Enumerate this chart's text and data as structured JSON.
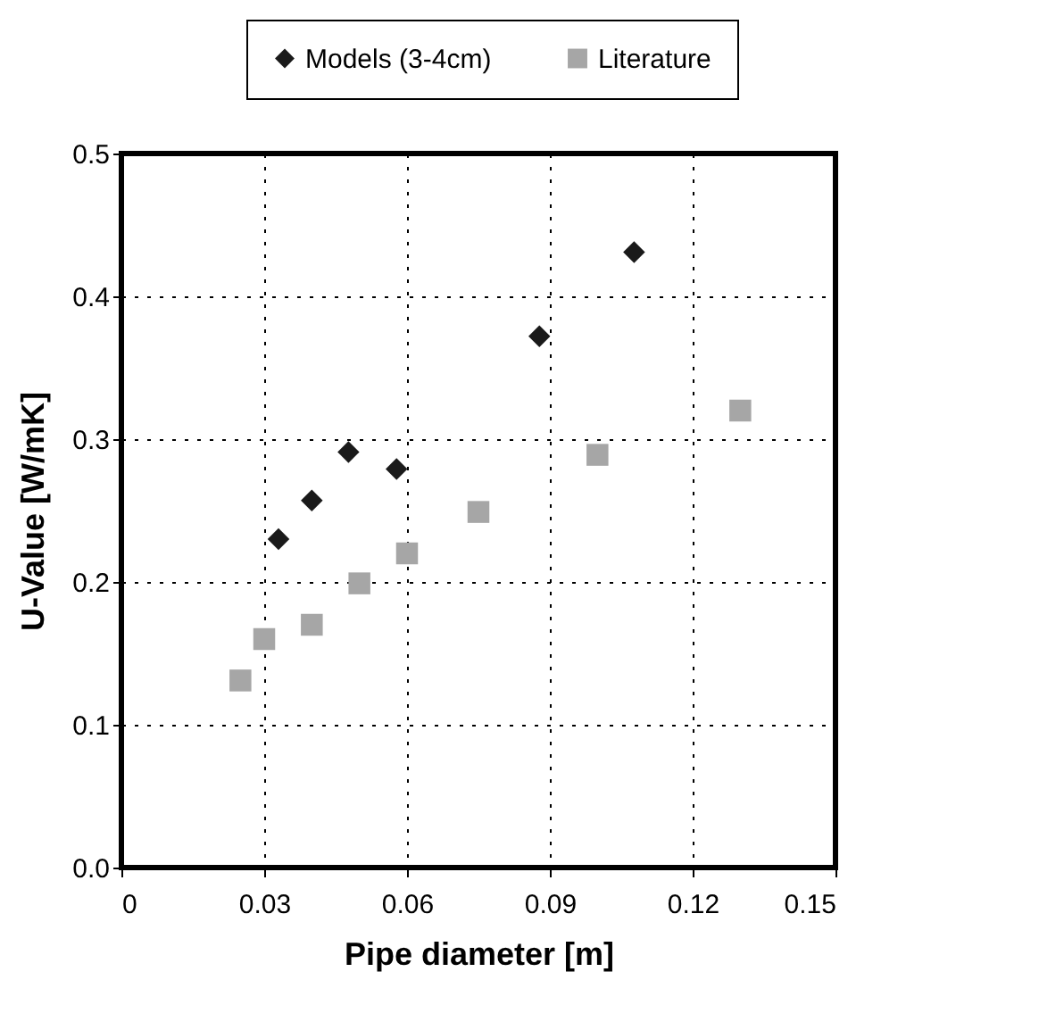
{
  "chart_data": {
    "type": "scatter",
    "xlabel": "Pipe diameter [m]",
    "ylabel": "U-Value [W/mK]",
    "xlim": [
      0,
      0.15
    ],
    "xticks": [
      0,
      0.03,
      0.06,
      0.09,
      0.12,
      0.15
    ],
    "ylim": [
      0,
      0.5
    ],
    "yticks": [
      {
        "value": 0,
        "label": "0.0"
      },
      0.1,
      0.2,
      0.3,
      0.4,
      0.5
    ],
    "grid": true,
    "legend": "top right",
    "series": [
      {
        "name": "Models (3-4cm)",
        "color": "#1a1a1a",
        "marker": "diamond",
        "x": [
          0.033,
          0.04,
          0.0477,
          0.0578,
          0.0878,
          0.1077
        ],
        "values": [
          0.23,
          0.257,
          0.291,
          0.279,
          0.372,
          0.431
        ]
      },
      {
        "name": "Literature",
        "color": "#a6a6a6",
        "marker": "square",
        "x": [
          0.025,
          0.03,
          0.04,
          0.05,
          0.06,
          0.075,
          0.1,
          0.13
        ],
        "values": [
          0.131,
          0.16,
          0.17,
          0.199,
          0.22,
          0.249,
          0.289,
          0.32
        ]
      }
    ]
  }
}
